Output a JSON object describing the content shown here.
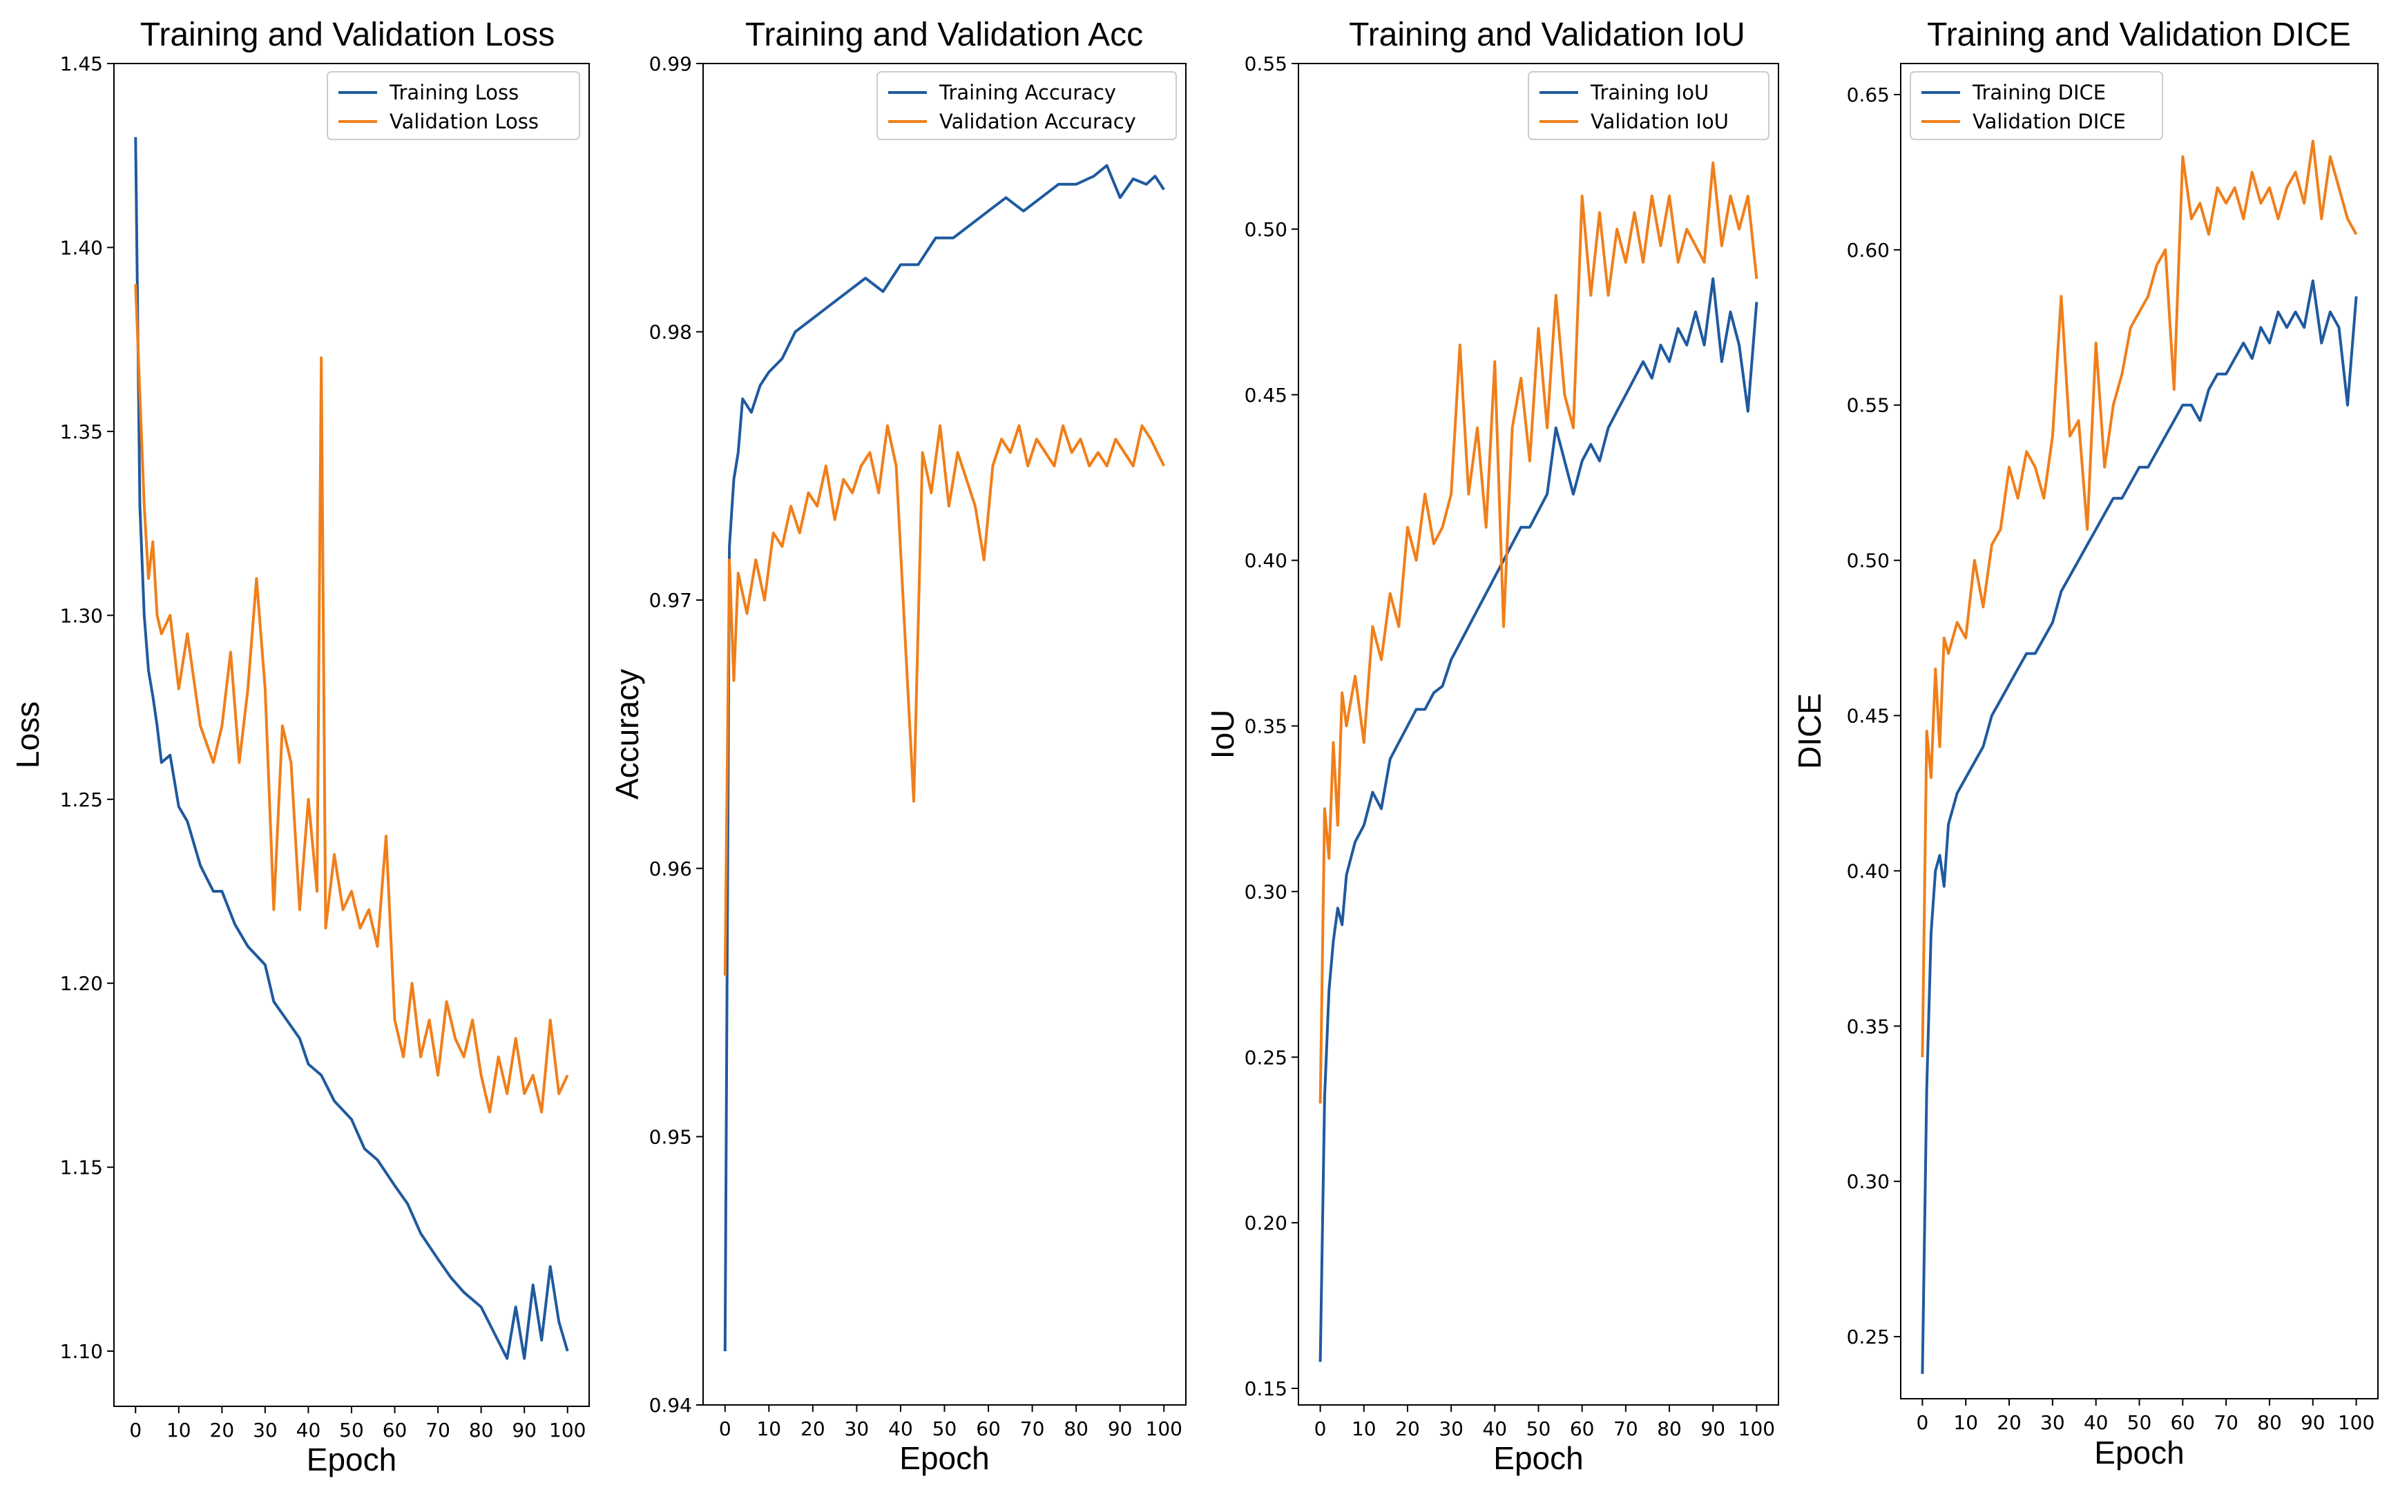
{
  "colors": {
    "training": "#1f5a9e",
    "validation": "#f07f1a"
  },
  "chart_data": [
    {
      "type": "line",
      "title": "Training and Validation Loss",
      "xlabel": "Epoch",
      "ylabel": "Loss",
      "xlim": [
        -5,
        105
      ],
      "ylim": [
        1.085,
        1.45
      ],
      "xticks": [
        0,
        10,
        20,
        30,
        40,
        50,
        60,
        70,
        80,
        90,
        100
      ],
      "yticks": [
        1.1,
        1.15,
        1.2,
        1.25,
        1.3,
        1.35,
        1.4,
        1.45
      ],
      "ytick_labels": [
        "1.10",
        "1.15",
        "1.20",
        "1.25",
        "1.30",
        "1.35",
        "1.40",
        "1.45"
      ],
      "legend_position": "top-right",
      "series": [
        {
          "name": "Training Loss",
          "color_key": "training",
          "x": [
            0,
            1,
            2,
            3,
            4,
            5,
            6,
            8,
            10,
            12,
            15,
            18,
            20,
            23,
            26,
            30,
            32,
            35,
            38,
            40,
            43,
            46,
            50,
            53,
            56,
            60,
            63,
            66,
            70,
            73,
            76,
            80,
            83,
            86,
            88,
            90,
            92,
            94,
            96,
            98,
            100
          ],
          "values": [
            1.43,
            1.33,
            1.3,
            1.285,
            1.278,
            1.27,
            1.26,
            1.262,
            1.248,
            1.244,
            1.232,
            1.225,
            1.225,
            1.216,
            1.21,
            1.205,
            1.195,
            1.19,
            1.185,
            1.178,
            1.175,
            1.168,
            1.163,
            1.155,
            1.152,
            1.145,
            1.14,
            1.132,
            1.125,
            1.12,
            1.116,
            1.112,
            1.105,
            1.098,
            1.112,
            1.098,
            1.118,
            1.103,
            1.123,
            1.108,
            1.1
          ]
        },
        {
          "name": "Validation Loss",
          "color_key": "validation",
          "x": [
            0,
            1,
            2,
            3,
            4,
            5,
            6,
            8,
            10,
            12,
            15,
            18,
            20,
            22,
            24,
            26,
            28,
            30,
            32,
            34,
            36,
            38,
            40,
            42,
            43,
            44,
            46,
            48,
            50,
            52,
            54,
            56,
            58,
            60,
            62,
            64,
            66,
            68,
            70,
            72,
            74,
            76,
            78,
            80,
            82,
            84,
            86,
            88,
            90,
            92,
            94,
            96,
            98,
            100
          ],
          "values": [
            1.39,
            1.36,
            1.33,
            1.31,
            1.32,
            1.3,
            1.295,
            1.3,
            1.28,
            1.295,
            1.27,
            1.26,
            1.27,
            1.29,
            1.26,
            1.28,
            1.31,
            1.28,
            1.22,
            1.27,
            1.26,
            1.22,
            1.25,
            1.225,
            1.37,
            1.215,
            1.235,
            1.22,
            1.225,
            1.215,
            1.22,
            1.21,
            1.24,
            1.19,
            1.18,
            1.2,
            1.18,
            1.19,
            1.175,
            1.195,
            1.185,
            1.18,
            1.19,
            1.175,
            1.165,
            1.18,
            1.17,
            1.185,
            1.17,
            1.175,
            1.165,
            1.19,
            1.17,
            1.175
          ]
        }
      ]
    },
    {
      "type": "line",
      "title": "Training and Validation Acc",
      "xlabel": "Epoch",
      "ylabel": "Accuracy",
      "xlim": [
        -5,
        105
      ],
      "ylim": [
        0.94,
        0.99
      ],
      "xticks": [
        0,
        10,
        20,
        30,
        40,
        50,
        60,
        70,
        80,
        90,
        100
      ],
      "yticks": [
        0.94,
        0.95,
        0.96,
        0.97,
        0.98,
        0.99
      ],
      "ytick_labels": [
        "0.94",
        "0.95",
        "0.96",
        "0.97",
        "0.98",
        "0.99"
      ],
      "legend_position": "top-right",
      "series": [
        {
          "name": "Training Accuracy",
          "color_key": "training",
          "x": [
            0,
            1,
            2,
            3,
            4,
            6,
            8,
            10,
            13,
            16,
            20,
            24,
            28,
            32,
            36,
            40,
            44,
            48,
            52,
            56,
            60,
            64,
            68,
            72,
            76,
            80,
            84,
            87,
            90,
            93,
            96,
            98,
            100
          ],
          "values": [
            0.942,
            0.972,
            0.9745,
            0.9755,
            0.9775,
            0.977,
            0.978,
            0.9785,
            0.979,
            0.98,
            0.9805,
            0.981,
            0.9815,
            0.982,
            0.9815,
            0.9825,
            0.9825,
            0.9835,
            0.9835,
            0.984,
            0.9845,
            0.985,
            0.9845,
            0.985,
            0.9855,
            0.9855,
            0.9858,
            0.9862,
            0.985,
            0.9857,
            0.9855,
            0.9858,
            0.9853
          ]
        },
        {
          "name": "Validation Accuracy",
          "color_key": "validation",
          "x": [
            0,
            1,
            2,
            3,
            5,
            7,
            9,
            11,
            13,
            15,
            17,
            19,
            21,
            23,
            25,
            27,
            29,
            31,
            33,
            35,
            37,
            39,
            41,
            43,
            45,
            47,
            49,
            51,
            53,
            55,
            57,
            59,
            61,
            63,
            65,
            67,
            69,
            71,
            73,
            75,
            77,
            79,
            81,
            83,
            85,
            87,
            89,
            91,
            93,
            95,
            97,
            100
          ],
          "values": [
            0.956,
            0.9715,
            0.967,
            0.971,
            0.9695,
            0.9715,
            0.97,
            0.9725,
            0.972,
            0.9735,
            0.9725,
            0.974,
            0.9735,
            0.975,
            0.973,
            0.9745,
            0.974,
            0.975,
            0.9755,
            0.974,
            0.9765,
            0.975,
            0.9687,
            0.9625,
            0.9755,
            0.974,
            0.9765,
            0.9735,
            0.9755,
            0.9745,
            0.9735,
            0.9715,
            0.975,
            0.976,
            0.9755,
            0.9765,
            0.975,
            0.976,
            0.9755,
            0.975,
            0.9765,
            0.9755,
            0.976,
            0.975,
            0.9755,
            0.975,
            0.976,
            0.9755,
            0.975,
            0.9765,
            0.976,
            0.975
          ]
        }
      ]
    },
    {
      "type": "line",
      "title": "Training and Validation IoU",
      "xlabel": "Epoch",
      "ylabel": "IoU",
      "xlim": [
        -5,
        105
      ],
      "ylim": [
        0.145,
        0.55
      ],
      "xticks": [
        0,
        10,
        20,
        30,
        40,
        50,
        60,
        70,
        80,
        90,
        100
      ],
      "yticks": [
        0.15,
        0.2,
        0.25,
        0.3,
        0.35,
        0.4,
        0.45,
        0.5,
        0.55
      ],
      "ytick_labels": [
        "0.15",
        "0.20",
        "0.25",
        "0.30",
        "0.35",
        "0.40",
        "0.45",
        "0.50",
        "0.55"
      ],
      "legend_position": "top-right",
      "series": [
        {
          "name": "Training IoU",
          "color_key": "training",
          "x": [
            0,
            1,
            2,
            3,
            4,
            5,
            6,
            8,
            10,
            12,
            14,
            16,
            18,
            20,
            22,
            24,
            26,
            28,
            30,
            32,
            34,
            36,
            38,
            40,
            42,
            44,
            46,
            48,
            50,
            52,
            54,
            56,
            58,
            60,
            62,
            64,
            66,
            68,
            70,
            72,
            74,
            76,
            78,
            80,
            82,
            84,
            86,
            88,
            90,
            92,
            94,
            96,
            98,
            100
          ],
          "values": [
            0.158,
            0.238,
            0.27,
            0.285,
            0.295,
            0.29,
            0.305,
            0.315,
            0.32,
            0.33,
            0.325,
            0.34,
            0.345,
            0.35,
            0.355,
            0.355,
            0.36,
            0.362,
            0.37,
            0.375,
            0.38,
            0.385,
            0.39,
            0.395,
            0.4,
            0.405,
            0.41,
            0.41,
            0.415,
            0.42,
            0.44,
            0.43,
            0.42,
            0.43,
            0.435,
            0.43,
            0.44,
            0.445,
            0.45,
            0.455,
            0.46,
            0.455,
            0.465,
            0.46,
            0.47,
            0.465,
            0.475,
            0.465,
            0.485,
            0.46,
            0.475,
            0.465,
            0.445,
            0.478
          ]
        },
        {
          "name": "Validation IoU",
          "color_key": "validation",
          "x": [
            0,
            1,
            2,
            3,
            4,
            5,
            6,
            8,
            10,
            12,
            14,
            16,
            18,
            20,
            22,
            24,
            26,
            28,
            30,
            32,
            34,
            36,
            38,
            40,
            42,
            44,
            46,
            48,
            50,
            52,
            54,
            56,
            58,
            60,
            62,
            64,
            66,
            68,
            70,
            72,
            74,
            76,
            78,
            80,
            82,
            84,
            86,
            88,
            90,
            92,
            94,
            96,
            98,
            100
          ],
          "values": [
            0.236,
            0.325,
            0.31,
            0.345,
            0.32,
            0.36,
            0.35,
            0.365,
            0.345,
            0.38,
            0.37,
            0.39,
            0.38,
            0.41,
            0.4,
            0.42,
            0.405,
            0.41,
            0.42,
            0.465,
            0.42,
            0.44,
            0.41,
            0.46,
            0.38,
            0.44,
            0.455,
            0.43,
            0.47,
            0.44,
            0.48,
            0.45,
            0.44,
            0.51,
            0.48,
            0.505,
            0.48,
            0.5,
            0.49,
            0.505,
            0.49,
            0.51,
            0.495,
            0.51,
            0.49,
            0.5,
            0.495,
            0.49,
            0.52,
            0.495,
            0.51,
            0.5,
            0.51,
            0.485
          ]
        }
      ]
    },
    {
      "type": "line",
      "title": "Training and Validation DICE",
      "xlabel": "Epoch",
      "ylabel": "DICE",
      "xlim": [
        -5,
        105
      ],
      "ylim": [
        0.23,
        0.66
      ],
      "xticks": [
        0,
        10,
        20,
        30,
        40,
        50,
        60,
        70,
        80,
        90,
        100
      ],
      "yticks": [
        0.25,
        0.3,
        0.35,
        0.4,
        0.45,
        0.5,
        0.55,
        0.6,
        0.65
      ],
      "ytick_labels": [
        "0.25",
        "0.30",
        "0.35",
        "0.40",
        "0.45",
        "0.50",
        "0.55",
        "0.60",
        "0.65"
      ],
      "legend_position": "top-left",
      "series": [
        {
          "name": "Training DICE",
          "color_key": "training",
          "x": [
            0,
            1,
            2,
            3,
            4,
            5,
            6,
            8,
            10,
            12,
            14,
            16,
            18,
            20,
            22,
            24,
            26,
            28,
            30,
            32,
            34,
            36,
            38,
            40,
            42,
            44,
            46,
            48,
            50,
            52,
            54,
            56,
            58,
            60,
            62,
            64,
            66,
            68,
            70,
            72,
            74,
            76,
            78,
            80,
            82,
            84,
            86,
            88,
            90,
            92,
            94,
            96,
            98,
            100
          ],
          "values": [
            0.238,
            0.33,
            0.38,
            0.4,
            0.405,
            0.395,
            0.415,
            0.425,
            0.43,
            0.435,
            0.44,
            0.45,
            0.455,
            0.46,
            0.465,
            0.47,
            0.47,
            0.475,
            0.48,
            0.49,
            0.495,
            0.5,
            0.505,
            0.51,
            0.515,
            0.52,
            0.52,
            0.525,
            0.53,
            0.53,
            0.535,
            0.54,
            0.545,
            0.55,
            0.55,
            0.545,
            0.555,
            0.56,
            0.56,
            0.565,
            0.57,
            0.565,
            0.575,
            0.57,
            0.58,
            0.575,
            0.58,
            0.575,
            0.59,
            0.57,
            0.58,
            0.575,
            0.55,
            0.585
          ]
        },
        {
          "name": "Validation DICE",
          "color_key": "validation",
          "x": [
            0,
            1,
            2,
            3,
            4,
            5,
            6,
            8,
            10,
            12,
            14,
            16,
            18,
            20,
            22,
            24,
            26,
            28,
            30,
            32,
            34,
            36,
            38,
            40,
            42,
            44,
            46,
            48,
            50,
            52,
            54,
            56,
            58,
            60,
            62,
            64,
            66,
            68,
            70,
            72,
            74,
            76,
            78,
            80,
            82,
            84,
            86,
            88,
            90,
            92,
            94,
            96,
            98,
            100
          ],
          "values": [
            0.34,
            0.445,
            0.43,
            0.465,
            0.44,
            0.475,
            0.47,
            0.48,
            0.475,
            0.5,
            0.485,
            0.505,
            0.51,
            0.53,
            0.52,
            0.535,
            0.53,
            0.52,
            0.54,
            0.585,
            0.54,
            0.545,
            0.51,
            0.57,
            0.53,
            0.55,
            0.56,
            0.575,
            0.58,
            0.585,
            0.595,
            0.6,
            0.555,
            0.63,
            0.61,
            0.615,
            0.605,
            0.62,
            0.615,
            0.62,
            0.61,
            0.625,
            0.615,
            0.62,
            0.61,
            0.62,
            0.625,
            0.615,
            0.635,
            0.61,
            0.63,
            0.62,
            0.61,
            0.605
          ]
        }
      ]
    }
  ]
}
